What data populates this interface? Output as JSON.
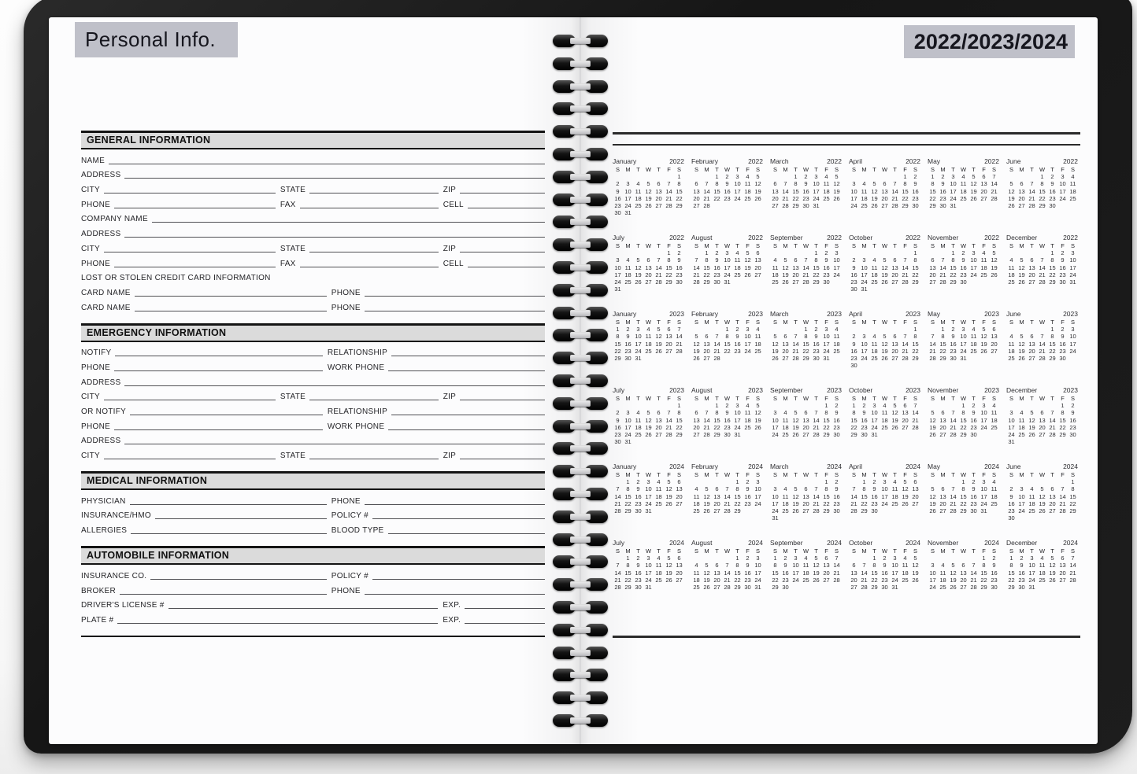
{
  "left_page": {
    "title": "Personal Info.",
    "sections": [
      {
        "heading": "GENERAL INFORMATION",
        "rows": [
          [
            {
              "label": "NAME",
              "flex": 1
            }
          ],
          [
            {
              "label": "ADDRESS",
              "flex": 1
            }
          ],
          [
            {
              "label": "CITY",
              "flex": 252
            },
            {
              "label": "STATE",
              "flex": 205
            },
            {
              "label": "ZIP",
              "flex": 132
            }
          ],
          [
            {
              "label": "PHONE",
              "flex": 252
            },
            {
              "label": "FAX",
              "flex": 205
            },
            {
              "label": "CELL",
              "flex": 132
            }
          ],
          [
            {
              "label": "COMPANY NAME",
              "flex": 1
            }
          ],
          [
            {
              "label": "ADDRESS",
              "flex": 1
            }
          ],
          [
            {
              "label": "CITY",
              "flex": 252
            },
            {
              "label": "STATE",
              "flex": 205
            },
            {
              "label": "ZIP",
              "flex": 132
            }
          ],
          [
            {
              "label": "PHONE",
              "flex": 252
            },
            {
              "label": "FAX",
              "flex": 205
            },
            {
              "label": "CELL",
              "flex": 132
            }
          ],
          [
            {
              "label": "LOST OR STOLEN CREDIT CARD INFORMATION",
              "flex": 1,
              "noline": true
            }
          ],
          [
            {
              "label": "CARD NAME",
              "flex": 315
            },
            {
              "label": "PHONE",
              "flex": 274
            }
          ],
          [
            {
              "label": "CARD NAME",
              "flex": 315
            },
            {
              "label": "PHONE",
              "flex": 274
            }
          ]
        ]
      },
      {
        "heading": "EMERGENCY INFORMATION",
        "rows": [
          [
            {
              "label": "NOTIFY",
              "flex": 310
            },
            {
              "label": "RELATIONSHIP",
              "flex": 279
            }
          ],
          [
            {
              "label": "PHONE",
              "flex": 310
            },
            {
              "label": "WORK PHONE",
              "flex": 279
            }
          ],
          [
            {
              "label": "ADDRESS",
              "flex": 1
            }
          ],
          [
            {
              "label": "CITY",
              "flex": 252
            },
            {
              "label": "STATE",
              "flex": 205
            },
            {
              "label": "ZIP",
              "flex": 132
            }
          ],
          [
            {
              "label": "OR NOTIFY",
              "flex": 310
            },
            {
              "label": "RELATIONSHIP",
              "flex": 279
            }
          ],
          [
            {
              "label": "PHONE",
              "flex": 310
            },
            {
              "label": "WORK PHONE",
              "flex": 279
            }
          ],
          [
            {
              "label": "ADDRESS",
              "flex": 1
            }
          ],
          [
            {
              "label": "CITY",
              "flex": 252
            },
            {
              "label": "STATE",
              "flex": 205
            },
            {
              "label": "ZIP",
              "flex": 132
            }
          ]
        ]
      },
      {
        "heading": "MEDICAL INFORMATION",
        "rows": [
          [
            {
              "label": "PHYSICIAN",
              "flex": 315
            },
            {
              "label": "PHONE",
              "flex": 274
            }
          ],
          [
            {
              "label": "INSURANCE/HMO",
              "flex": 315
            },
            {
              "label": "POLICY #",
              "flex": 274
            }
          ],
          [
            {
              "label": "ALLERGIES",
              "flex": 315
            },
            {
              "label": "BLOOD TYPE",
              "flex": 274
            }
          ]
        ]
      },
      {
        "heading": "AUTOMOBILE INFORMATION",
        "rows": [
          [
            {
              "label": "INSURANCE CO.",
              "flex": 315
            },
            {
              "label": "POLICY #",
              "flex": 274
            }
          ],
          [
            {
              "label": "BROKER",
              "flex": 315
            },
            {
              "label": "PHONE",
              "flex": 274
            }
          ],
          [
            {
              "label": "DRIVER'S LICENSE #",
              "flex": 458
            },
            {
              "label": "EXP.",
              "flex": 131
            }
          ],
          [
            {
              "label": "PLATE #",
              "flex": 458
            },
            {
              "label": "EXP.",
              "flex": 131
            }
          ]
        ]
      }
    ]
  },
  "right_page": {
    "title": "2022/2023/2024",
    "weekday_letters": [
      "S",
      "M",
      "T",
      "W",
      "T",
      "F",
      "S"
    ],
    "months": [
      {
        "name": "January",
        "year": "2022",
        "first_day": 6,
        "days": 31
      },
      {
        "name": "February",
        "year": "2022",
        "first_day": 2,
        "days": 28
      },
      {
        "name": "March",
        "year": "2022",
        "first_day": 2,
        "days": 31
      },
      {
        "name": "April",
        "year": "2022",
        "first_day": 5,
        "days": 30
      },
      {
        "name": "May",
        "year": "2022",
        "first_day": 0,
        "days": 31
      },
      {
        "name": "June",
        "year": "2022",
        "first_day": 3,
        "days": 30
      },
      {
        "name": "July",
        "year": "2022",
        "first_day": 5,
        "days": 31
      },
      {
        "name": "August",
        "year": "2022",
        "first_day": 1,
        "days": 31
      },
      {
        "name": "September",
        "year": "2022",
        "first_day": 4,
        "days": 30
      },
      {
        "name": "October",
        "year": "2022",
        "first_day": 6,
        "days": 31
      },
      {
        "name": "November",
        "year": "2022",
        "first_day": 2,
        "days": 30
      },
      {
        "name": "December",
        "year": "2022",
        "first_day": 4,
        "days": 31
      },
      {
        "name": "January",
        "year": "2023",
        "first_day": 0,
        "days": 31
      },
      {
        "name": "February",
        "year": "2023",
        "first_day": 3,
        "days": 28
      },
      {
        "name": "March",
        "year": "2023",
        "first_day": 3,
        "days": 31
      },
      {
        "name": "April",
        "year": "2023",
        "first_day": 6,
        "days": 30
      },
      {
        "name": "May",
        "year": "2023",
        "first_day": 1,
        "days": 31
      },
      {
        "name": "June",
        "year": "2023",
        "first_day": 4,
        "days": 30
      },
      {
        "name": "July",
        "year": "2023",
        "first_day": 6,
        "days": 31
      },
      {
        "name": "August",
        "year": "2023",
        "first_day": 2,
        "days": 31
      },
      {
        "name": "September",
        "year": "2023",
        "first_day": 5,
        "days": 30
      },
      {
        "name": "October",
        "year": "2023",
        "first_day": 0,
        "days": 31
      },
      {
        "name": "November",
        "year": "2023",
        "first_day": 3,
        "days": 30
      },
      {
        "name": "December",
        "year": "2023",
        "first_day": 5,
        "days": 31
      },
      {
        "name": "January",
        "year": "2024",
        "first_day": 1,
        "days": 31
      },
      {
        "name": "February",
        "year": "2024",
        "first_day": 4,
        "days": 29
      },
      {
        "name": "March",
        "year": "2024",
        "first_day": 5,
        "days": 31
      },
      {
        "name": "April",
        "year": "2024",
        "first_day": 1,
        "days": 30
      },
      {
        "name": "May",
        "year": "2024",
        "first_day": 3,
        "days": 31
      },
      {
        "name": "June",
        "year": "2024",
        "first_day": 6,
        "days": 30
      },
      {
        "name": "July",
        "year": "2024",
        "first_day": 1,
        "days": 31
      },
      {
        "name": "August",
        "year": "2024",
        "first_day": 4,
        "days": 31
      },
      {
        "name": "September",
        "year": "2024",
        "first_day": 0,
        "days": 30
      },
      {
        "name": "October",
        "year": "2024",
        "first_day": 2,
        "days": 31
      },
      {
        "name": "November",
        "year": "2024",
        "first_day": 5,
        "days": 30
      },
      {
        "name": "December",
        "year": "2024",
        "first_day": 0,
        "days": 31
      }
    ]
  }
}
